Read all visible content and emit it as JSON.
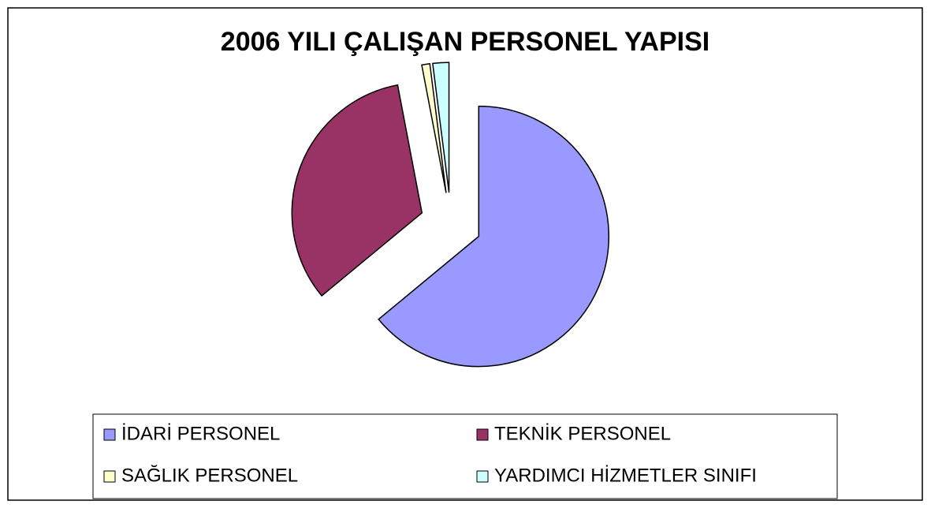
{
  "chart_data": {
    "type": "pie",
    "title": "2006 YILI ÇALIŞAN PERSONEL YAPISI",
    "categories": [
      "İDARİ PERSONEL",
      "TEKNİK PERSONEL",
      "SAĞLIK PERSONEL",
      "YARDIMCI HİZMETLER SINIFI"
    ],
    "values": [
      64,
      33,
      1,
      2
    ],
    "colors": [
      "#9999ff",
      "#993366",
      "#ffffcc",
      "#ccffff"
    ],
    "legend": "bottom"
  }
}
